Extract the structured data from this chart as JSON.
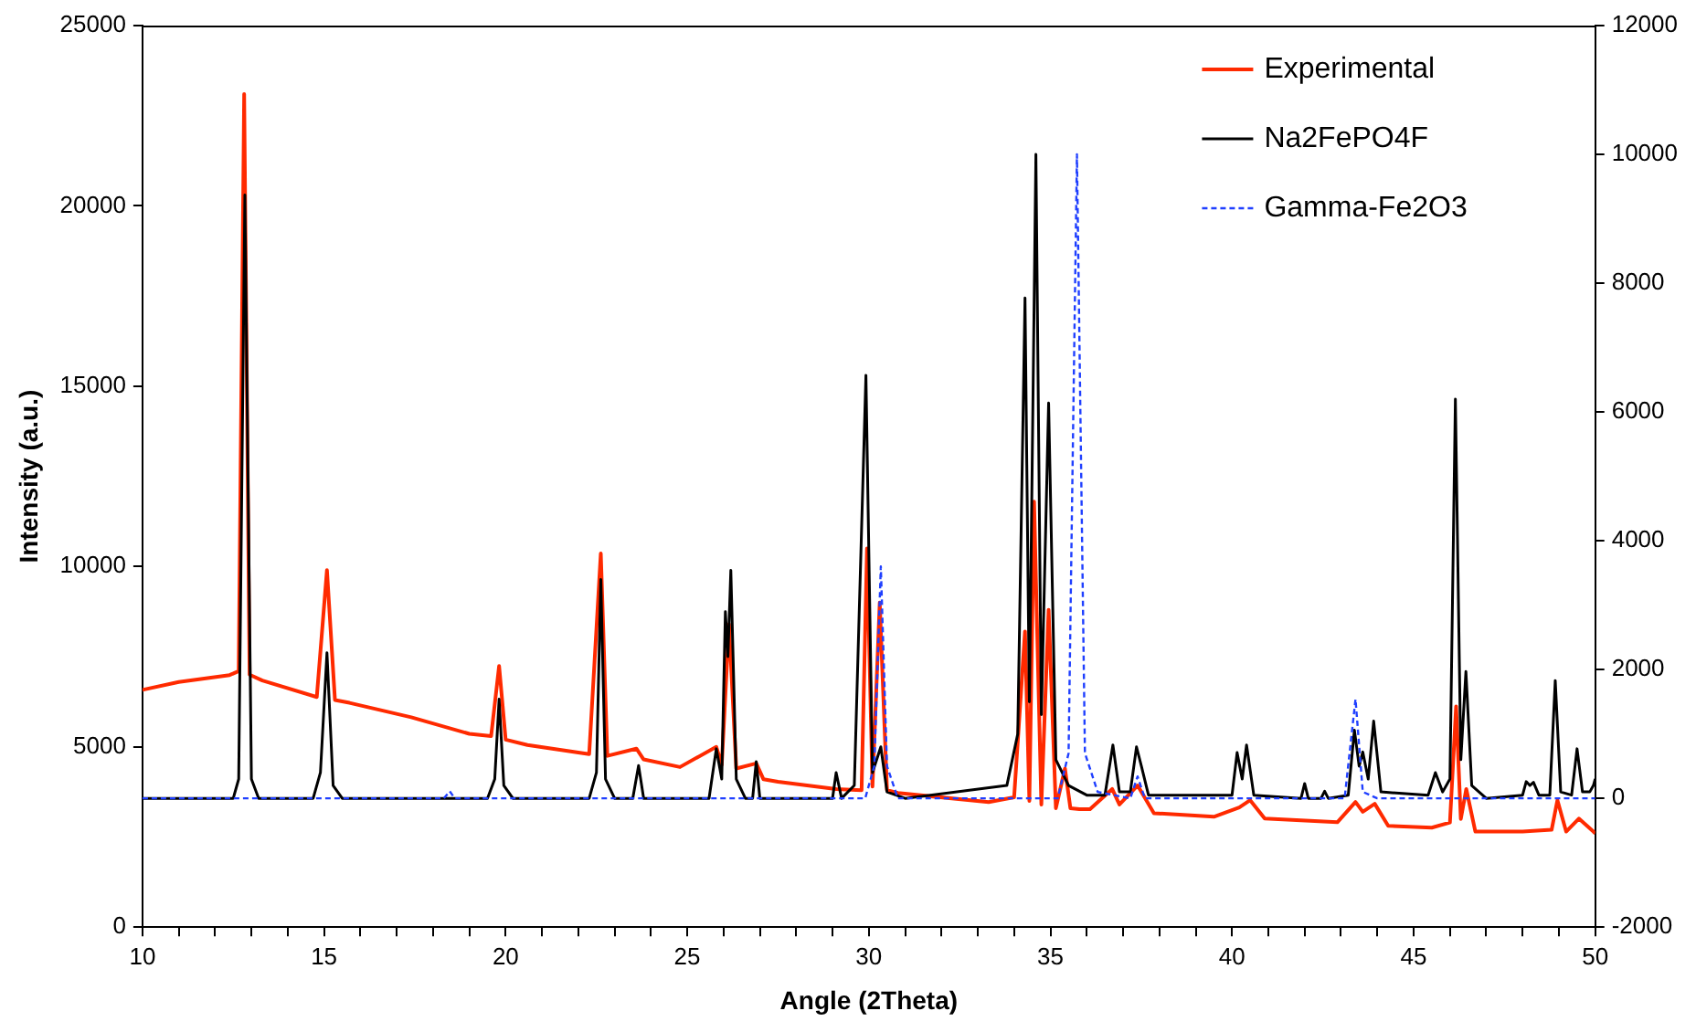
{
  "chart_data": {
    "type": "line",
    "xlabel": "Angle (2Theta)",
    "ylabel": "Intensity (a.u.)",
    "xlim": [
      10,
      50
    ],
    "xticks": [
      10,
      {
        "value": 11,
        "label": null
      },
      {
        "value": 12,
        "label": null
      },
      {
        "value": 13,
        "label": null
      },
      {
        "value": 14,
        "label": null
      },
      15,
      {
        "value": 16,
        "label": null
      },
      {
        "value": 17,
        "label": null
      },
      {
        "value": 18,
        "label": null
      },
      {
        "value": 19,
        "label": null
      },
      20,
      {
        "value": 21,
        "label": null
      },
      {
        "value": 22,
        "label": null
      },
      {
        "value": 23,
        "label": null
      },
      {
        "value": 24,
        "label": null
      },
      25,
      {
        "value": 26,
        "label": null
      },
      {
        "value": 27,
        "label": null
      },
      {
        "value": 28,
        "label": null
      },
      {
        "value": 29,
        "label": null
      },
      30,
      {
        "value": 31,
        "label": null
      },
      {
        "value": 32,
        "label": null
      },
      {
        "value": 33,
        "label": null
      },
      {
        "value": 34,
        "label": null
      },
      35,
      {
        "value": 36,
        "label": null
      },
      {
        "value": 37,
        "label": null
      },
      {
        "value": 38,
        "label": null
      },
      {
        "value": 39,
        "label": null
      },
      40,
      {
        "value": 41,
        "label": null
      },
      {
        "value": 42,
        "label": null
      },
      {
        "value": 43,
        "label": null
      },
      {
        "value": 44,
        "label": null
      },
      45,
      {
        "value": 46,
        "label": null
      },
      {
        "value": 47,
        "label": null
      },
      {
        "value": 48,
        "label": null
      },
      {
        "value": 49,
        "label": null
      },
      50
    ],
    "ylim": [
      0,
      25000
    ],
    "yticks": [
      0,
      5000,
      10000,
      15000,
      20000,
      25000
    ],
    "y2lim": [
      -2000,
      12000
    ],
    "y2ticks": [
      -2000,
      0,
      2000,
      4000,
      6000,
      8000,
      10000,
      12000
    ],
    "grid": false,
    "legend": "top right",
    "marker": "none",
    "series": [
      {
        "name": "Experimental",
        "color": "#ff2a00",
        "line_style": "solid",
        "x": [
          10,
          11,
          12.4,
          12.65,
          12.8,
          12.95,
          13.3,
          14.8,
          15.08,
          15.3,
          15.7,
          17.4,
          19.0,
          19.6,
          19.82,
          20.0,
          20.6,
          22.3,
          22.62,
          22.8,
          23.6,
          23.8,
          24.8,
          25.8,
          25.95,
          26.15,
          26.35,
          26.9,
          27.1,
          27.5,
          29.1,
          29.8,
          29.95,
          30.1,
          30.3,
          30.5,
          30.8,
          33.3,
          34.0,
          34.3,
          34.42,
          34.55,
          34.75,
          34.95,
          35.15,
          35.4,
          35.55,
          35.8,
          36.09,
          36.7,
          36.9,
          37.4,
          37.85,
          39.5,
          40.2,
          40.5,
          40.9,
          42.9,
          43.4,
          43.6,
          43.93,
          44.3,
          45.5,
          46.0,
          46.17,
          46.3,
          46.45,
          46.7,
          48.0,
          48.8,
          48.96,
          49.2,
          49.55,
          49.95,
          50
        ],
        "values": [
          6580,
          6800,
          6990,
          7100,
          23100,
          7000,
          6840,
          6380,
          9900,
          6300,
          6220,
          5820,
          5360,
          5300,
          7240,
          5200,
          5050,
          4800,
          10360,
          4750,
          4950,
          4650,
          4440,
          5000,
          4500,
          8400,
          4400,
          4540,
          4100,
          4030,
          3830,
          3800,
          10500,
          3900,
          9000,
          3800,
          3720,
          3470,
          3600,
          8200,
          3500,
          11800,
          3400,
          8800,
          3300,
          4400,
          3300,
          3270,
          3270,
          3830,
          3400,
          3930,
          3160,
          3060,
          3320,
          3520,
          3010,
          2910,
          3470,
          3200,
          3420,
          2810,
          2760,
          2900,
          6120,
          3000,
          3830,
          2650,
          2650,
          2700,
          3520,
          2650,
          3010,
          2650,
          2600
        ]
      },
      {
        "name": "Na2FePO4F",
        "color": "#000000",
        "line_style": "solid",
        "axis": "y2",
        "x": [
          10,
          12.5,
          12.65,
          12.82,
          13.0,
          13.2,
          14.7,
          14.9,
          15.08,
          15.25,
          15.5,
          19.5,
          19.7,
          19.82,
          19.95,
          20.2,
          22.3,
          22.5,
          22.62,
          22.75,
          23.0,
          23.5,
          23.66,
          23.8,
          25.6,
          25.8,
          25.95,
          26.05,
          26.12,
          26.2,
          26.35,
          26.6,
          26.8,
          26.9,
          27.0,
          29.0,
          29.1,
          29.25,
          29.6,
          29.92,
          30.1,
          30.33,
          30.5,
          31,
          33.8,
          34.1,
          34.3,
          34.42,
          34.6,
          34.75,
          34.95,
          35.15,
          35.5,
          36,
          36.5,
          36.72,
          36.9,
          37.2,
          37.37,
          37.5,
          37.7,
          40,
          40.14,
          40.28,
          40.4,
          40.6,
          41.9,
          42.0,
          42.1,
          42.45,
          42.55,
          42.65,
          43.2,
          43.37,
          43.5,
          43.6,
          43.75,
          43.9,
          44.1,
          45.4,
          45.6,
          45.8,
          46.0,
          46.15,
          46.3,
          46.44,
          46.6,
          47,
          48,
          48.1,
          48.2,
          48.3,
          48.45,
          48.75,
          48.9,
          49.05,
          49.35,
          49.5,
          49.65,
          49.85,
          49.95,
          50
        ],
        "values": [
          0,
          0,
          300,
          9370,
          300,
          0,
          0,
          400,
          2260,
          200,
          0,
          0,
          300,
          1540,
          200,
          0,
          0,
          400,
          3400,
          300,
          0,
          0,
          510,
          0,
          0,
          770,
          300,
          2900,
          2200,
          3540,
          300,
          0,
          0,
          570,
          0,
          0,
          400,
          0,
          200,
          6570,
          400,
          800,
          100,
          0,
          200,
          1000,
          7770,
          1500,
          10000,
          1300,
          6140,
          600,
          200,
          50,
          50,
          830,
          100,
          100,
          800,
          510,
          50,
          50,
          710,
          300,
          830,
          50,
          0,
          230,
          0,
          0,
          110,
          0,
          50,
          1060,
          500,
          720,
          300,
          1200,
          100,
          50,
          400,
          100,
          300,
          6200,
          600,
          1970,
          200,
          0,
          50,
          260,
          200,
          250,
          50,
          50,
          1830,
          100,
          50,
          770,
          100,
          100,
          200,
          300
        ]
      },
      {
        "name": "Gamma-Fe2O3",
        "color": "#1f3fff",
        "line_style": "dashed",
        "axis": "y2",
        "x": [
          10,
          18.3,
          18.46,
          18.6,
          29.9,
          30.15,
          30.33,
          30.5,
          30.8,
          35.2,
          35.5,
          35.73,
          35.95,
          36.3,
          37.2,
          37.4,
          37.6,
          43.1,
          43.4,
          43.6,
          44,
          50
        ],
        "values": [
          0,
          0,
          110,
          0,
          0,
          500,
          3600,
          500,
          0,
          0,
          700,
          10000,
          700,
          100,
          0,
          340,
          0,
          0,
          1540,
          100,
          0,
          0
        ]
      }
    ]
  }
}
